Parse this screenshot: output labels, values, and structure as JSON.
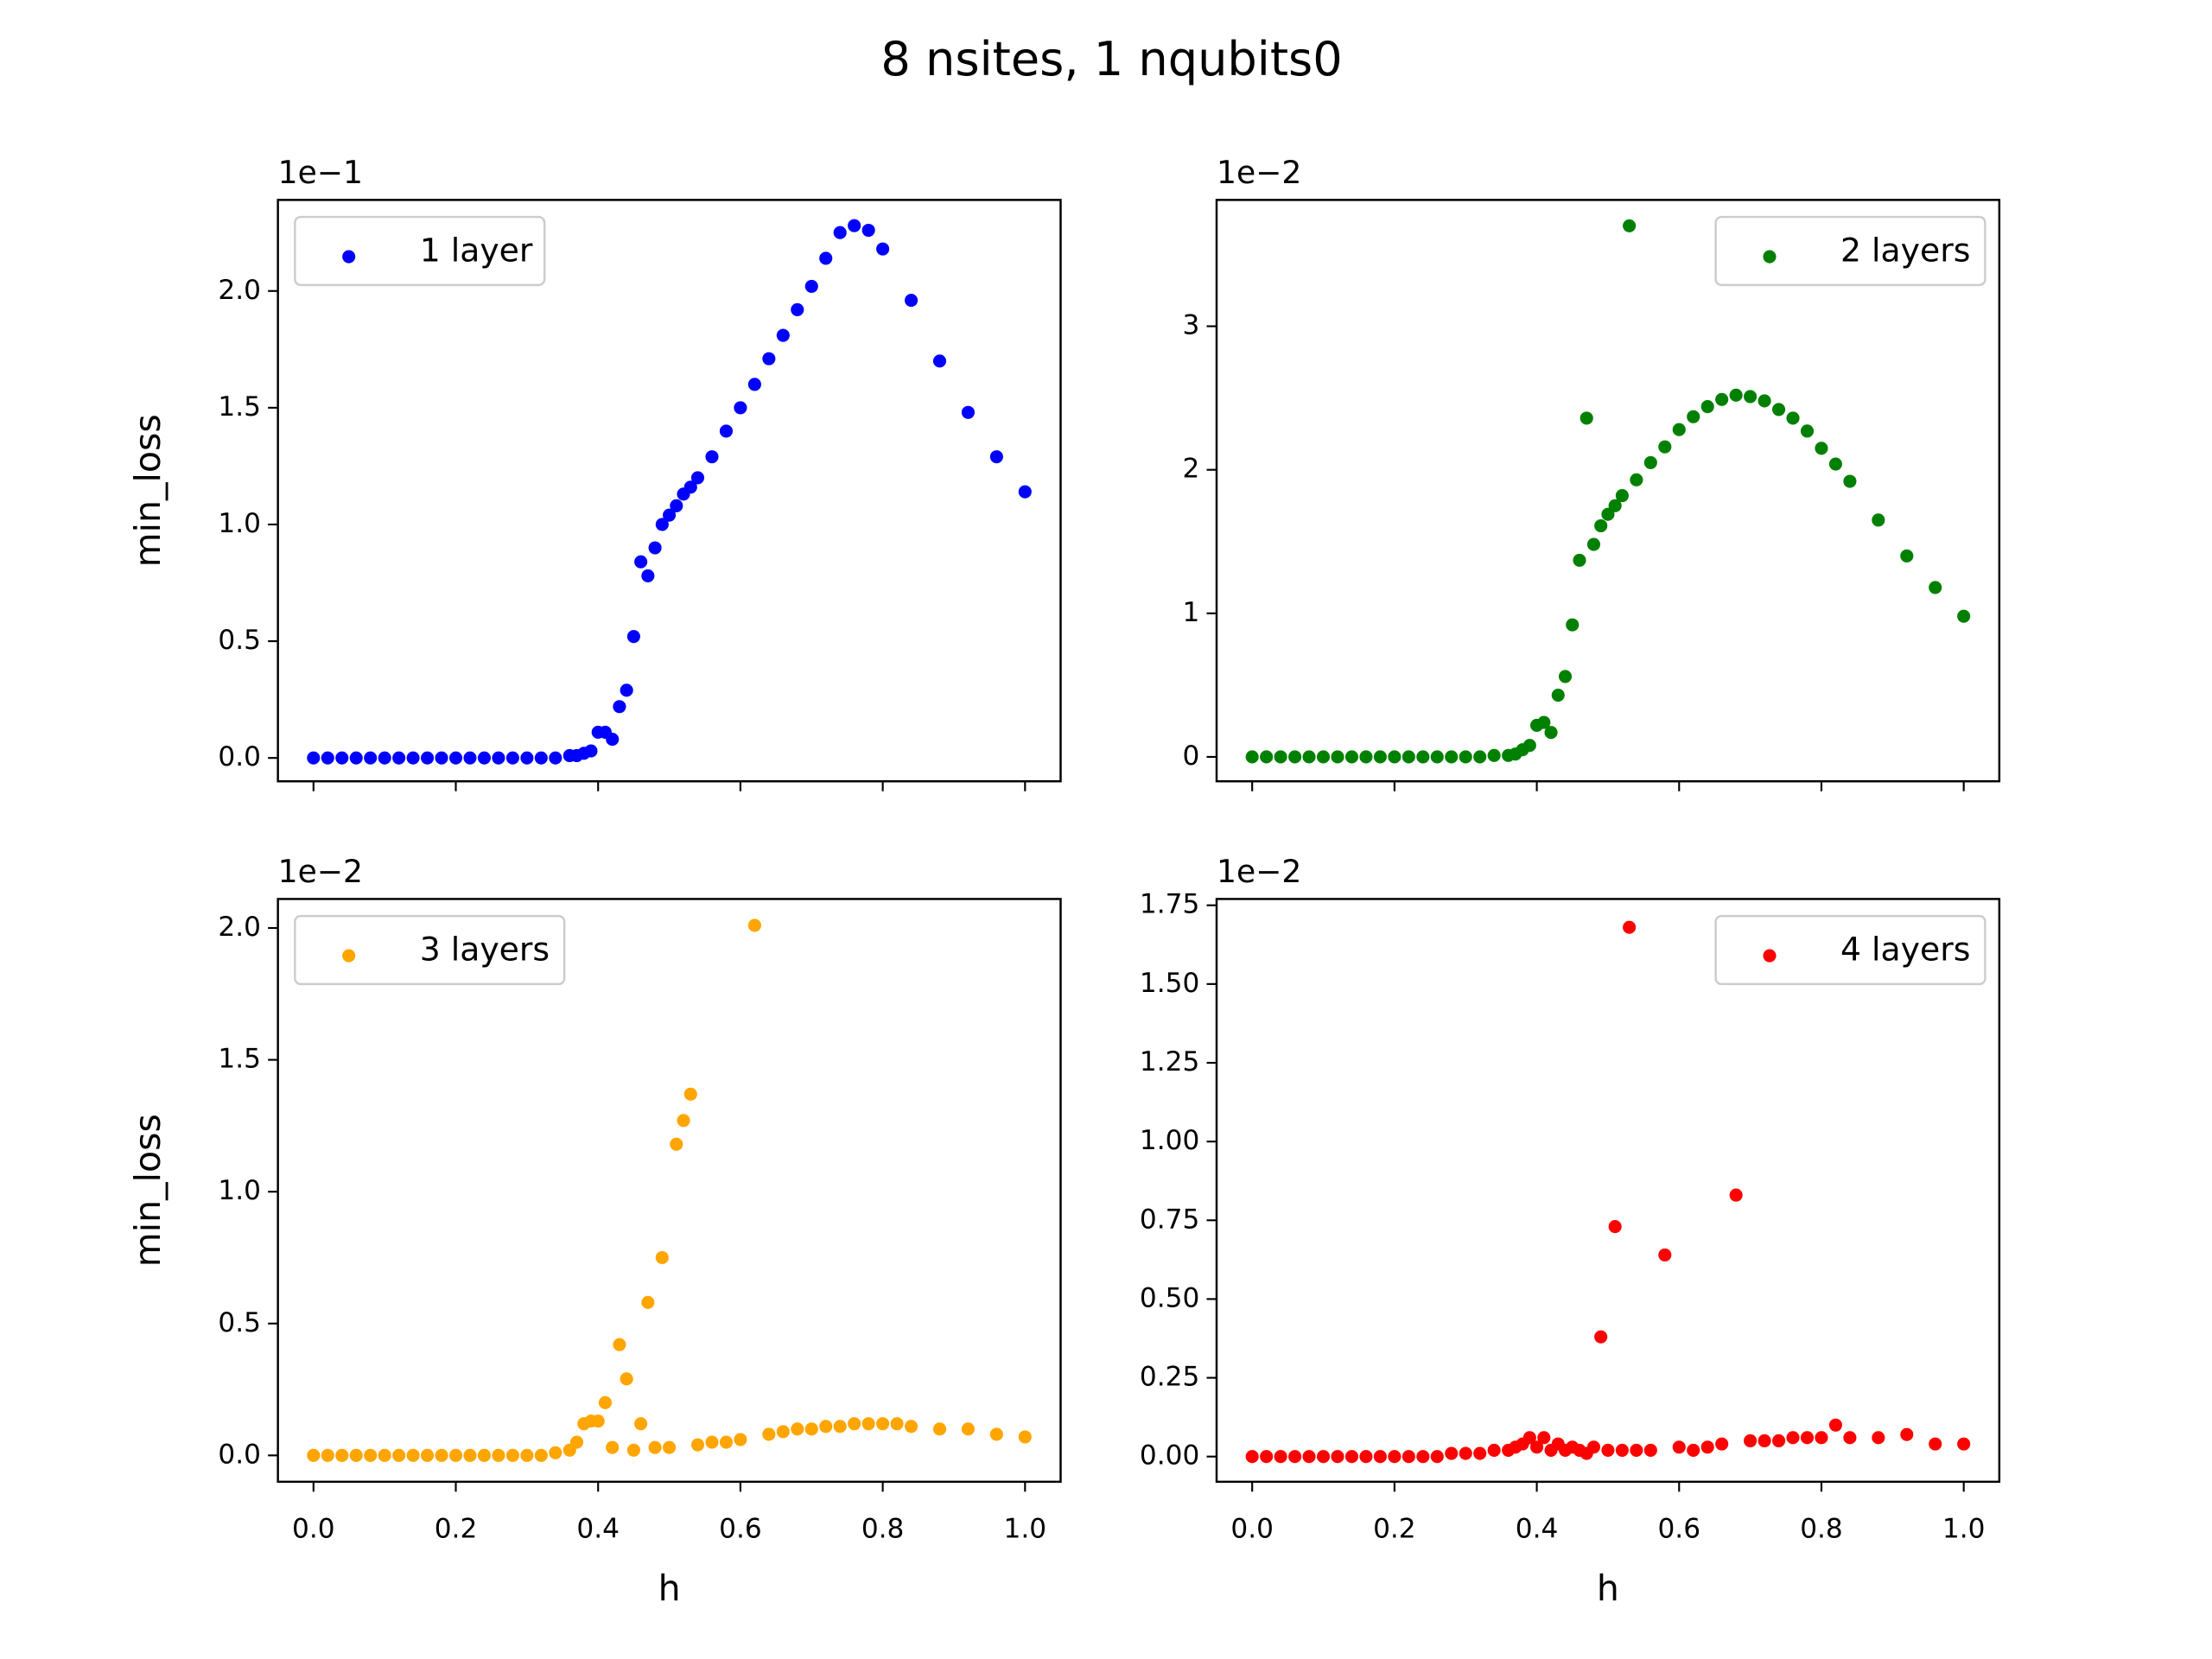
{
  "title": "8 nsites, 1 nqubits0",
  "chart_data": [
    {
      "type": "scatter",
      "ylabel": "min_loss",
      "offset_text": "1e−1",
      "x_tick_labels": false,
      "legend": "upper left",
      "xlim": [
        -0.05,
        1.05
      ],
      "ylim": [
        -0.1,
        2.39
      ],
      "xticks": [
        {
          "value": 0,
          "label": "0.0"
        },
        0.2,
        0.4,
        0.6,
        0.8,
        {
          "value": 1,
          "label": "1.0"
        }
      ],
      "yticks": [
        {
          "value": 0,
          "label": "0.0"
        },
        0.5,
        {
          "value": 1,
          "label": "1.0"
        },
        1.5,
        {
          "value": 2,
          "label": "2.0"
        }
      ],
      "series": [
        {
          "name": "1 layer",
          "color": "#0000ff",
          "x": [
            0,
            0.02,
            0.04,
            0.06,
            0.08,
            0.1,
            0.12,
            0.14,
            0.16,
            0.18,
            0.2,
            0.22,
            0.24,
            0.26,
            0.28,
            0.3,
            0.32,
            0.34,
            0.36,
            0.37,
            0.38,
            0.39,
            0.4,
            0.41,
            0.42,
            0.43,
            0.44,
            0.45,
            0.46,
            0.47,
            0.48,
            0.49,
            0.5,
            0.51,
            0.52,
            0.53,
            0.54,
            0.56,
            0.58,
            0.6,
            0.62,
            0.64,
            0.66,
            0.68,
            0.7,
            0.72,
            0.74,
            0.76,
            0.78,
            0.8,
            0.84,
            0.88,
            0.92,
            0.96,
            1.0
          ],
          "values": [
            0,
            0,
            0,
            0,
            0,
            0,
            0,
            0,
            0,
            0,
            0,
            0,
            0,
            0,
            0,
            0,
            0,
            0,
            0.01,
            0.01,
            0.02,
            0.03,
            0.11,
            0.11,
            0.08,
            0.22,
            0.29,
            0.52,
            0.84,
            0.78,
            0.9,
            1.0,
            1.04,
            1.08,
            1.13,
            1.16,
            1.2,
            1.29,
            1.4,
            1.5,
            1.6,
            1.71,
            1.81,
            1.92,
            2.02,
            2.14,
            2.25,
            2.28,
            2.26,
            2.18,
            1.96,
            1.7,
            1.48,
            1.29,
            1.14
          ]
        }
      ]
    },
    {
      "type": "scatter",
      "offset_text": "1e−2",
      "x_tick_labels": false,
      "legend": "upper right",
      "xlim": [
        -0.05,
        1.05
      ],
      "ylim": [
        -0.17,
        3.88
      ],
      "xticks": [
        {
          "value": 0,
          "label": "0.0"
        },
        0.2,
        0.4,
        0.6,
        0.8,
        {
          "value": 1,
          "label": "1.0"
        }
      ],
      "yticks": [
        0,
        1,
        2,
        3
      ],
      "series": [
        {
          "name": "2 layers",
          "color": "#008000",
          "x": [
            0,
            0.02,
            0.04,
            0.06,
            0.08,
            0.1,
            0.12,
            0.14,
            0.16,
            0.18,
            0.2,
            0.22,
            0.24,
            0.26,
            0.28,
            0.3,
            0.32,
            0.34,
            0.36,
            0.37,
            0.38,
            0.39,
            0.4,
            0.41,
            0.42,
            0.43,
            0.44,
            0.45,
            0.46,
            0.47,
            0.48,
            0.49,
            0.5,
            0.51,
            0.52,
            0.53,
            0.54,
            0.56,
            0.58,
            0.6,
            0.62,
            0.64,
            0.66,
            0.68,
            0.7,
            0.72,
            0.74,
            0.76,
            0.78,
            0.8,
            0.82,
            0.84,
            0.88,
            0.92,
            0.96,
            1.0
          ],
          "values": [
            0,
            0,
            0,
            0,
            0,
            0,
            0,
            0,
            0,
            0,
            0,
            0,
            0,
            0,
            0,
            0,
            0,
            0.01,
            0.01,
            0.02,
            0.05,
            0.08,
            0.22,
            0.24,
            0.17,
            0.43,
            0.56,
            0.92,
            1.37,
            2.36,
            1.48,
            1.61,
            1.69,
            1.75,
            1.82,
            3.7,
            1.93,
            2.05,
            2.16,
            2.28,
            2.37,
            2.44,
            2.49,
            2.52,
            2.51,
            2.48,
            2.42,
            2.36,
            2.27,
            2.15,
            2.04,
            1.92,
            1.65,
            1.4,
            1.18,
            0.98
          ]
        }
      ]
    },
    {
      "type": "scatter",
      "xlabel": "h",
      "ylabel": "min_loss",
      "offset_text": "1e−2",
      "x_tick_labels": true,
      "legend": "upper left",
      "xlim": [
        -0.05,
        1.05
      ],
      "ylim": [
        -0.1,
        2.11
      ],
      "xticks": [
        {
          "value": 0,
          "label": "0.0"
        },
        0.2,
        0.4,
        0.6,
        0.8,
        {
          "value": 1,
          "label": "1.0"
        }
      ],
      "yticks": [
        {
          "value": 0,
          "label": "0.0"
        },
        0.5,
        {
          "value": 1,
          "label": "1.0"
        },
        1.5,
        {
          "value": 2,
          "label": "2.0"
        }
      ],
      "series": [
        {
          "name": "3 layers",
          "color": "#ffa500",
          "x": [
            0,
            0.02,
            0.04,
            0.06,
            0.08,
            0.1,
            0.12,
            0.14,
            0.16,
            0.18,
            0.2,
            0.22,
            0.24,
            0.26,
            0.28,
            0.3,
            0.32,
            0.34,
            0.36,
            0.37,
            0.38,
            0.39,
            0.4,
            0.41,
            0.42,
            0.43,
            0.44,
            0.45,
            0.46,
            0.47,
            0.48,
            0.49,
            0.5,
            0.51,
            0.52,
            0.53,
            0.54,
            0.56,
            0.58,
            0.6,
            0.62,
            0.64,
            0.66,
            0.68,
            0.7,
            0.72,
            0.74,
            0.76,
            0.78,
            0.8,
            0.82,
            0.84,
            0.88,
            0.92,
            0.96,
            1.0
          ],
          "values": [
            0,
            0,
            0,
            0,
            0,
            0,
            0,
            0,
            0,
            0,
            0,
            0,
            0,
            0,
            0,
            0,
            0,
            0.01,
            0.02,
            0.05,
            0.12,
            0.13,
            0.13,
            0.2,
            0.03,
            0.42,
            0.29,
            0.02,
            0.12,
            0.58,
            0.03,
            0.75,
            0.03,
            1.18,
            1.27,
            1.37,
            0.04,
            0.05,
            0.05,
            0.06,
            2.01,
            0.08,
            0.09,
            0.1,
            0.1,
            0.11,
            0.11,
            0.12,
            0.12,
            0.12,
            0.12,
            0.11,
            0.1,
            0.1,
            0.08,
            0.07
          ]
        }
      ]
    },
    {
      "type": "scatter",
      "xlabel": "h",
      "offset_text": "1e−2",
      "x_tick_labels": true,
      "legend": "upper right",
      "xlim": [
        -0.05,
        1.05
      ],
      "ylim": [
        -0.08,
        1.77
      ],
      "xticks": [
        {
          "value": 0,
          "label": "0.0"
        },
        0.2,
        0.4,
        0.6,
        0.8,
        {
          "value": 1,
          "label": "1.0"
        }
      ],
      "yticks": [
        {
          "value": 0,
          "label": "0.00"
        },
        0.25,
        {
          "value": 0.5,
          "label": "0.50"
        },
        0.75,
        {
          "value": 1,
          "label": "1.00"
        },
        1.25,
        {
          "value": 1.5,
          "label": "1.50"
        },
        1.75
      ],
      "series": [
        {
          "name": "4 layers",
          "color": "#ff0000",
          "x": [
            0,
            0.02,
            0.04,
            0.06,
            0.08,
            0.1,
            0.12,
            0.14,
            0.16,
            0.18,
            0.2,
            0.22,
            0.24,
            0.26,
            0.28,
            0.3,
            0.32,
            0.34,
            0.36,
            0.37,
            0.38,
            0.39,
            0.4,
            0.41,
            0.42,
            0.43,
            0.44,
            0.45,
            0.46,
            0.47,
            0.48,
            0.49,
            0.5,
            0.51,
            0.52,
            0.53,
            0.54,
            0.56,
            0.58,
            0.6,
            0.62,
            0.64,
            0.66,
            0.68,
            0.7,
            0.72,
            0.74,
            0.76,
            0.78,
            0.8,
            0.82,
            0.84,
            0.88,
            0.92,
            0.96,
            1.0
          ],
          "values": [
            0,
            0,
            0,
            0,
            0,
            0,
            0,
            0,
            0,
            0,
            0,
            0,
            0,
            0,
            0.01,
            0.01,
            0.01,
            0.02,
            0.02,
            0.03,
            0.04,
            0.06,
            0.03,
            0.06,
            0.02,
            0.04,
            0.02,
            0.03,
            0.02,
            0.01,
            0.03,
            0.38,
            0.02,
            0.73,
            0.02,
            1.68,
            0.02,
            0.02,
            0.64,
            0.03,
            0.02,
            0.03,
            0.04,
            0.83,
            0.05,
            0.05,
            0.05,
            0.06,
            0.06,
            0.06,
            0.1,
            0.06,
            0.06,
            0.07,
            0.04,
            0.04
          ]
        }
      ]
    }
  ]
}
